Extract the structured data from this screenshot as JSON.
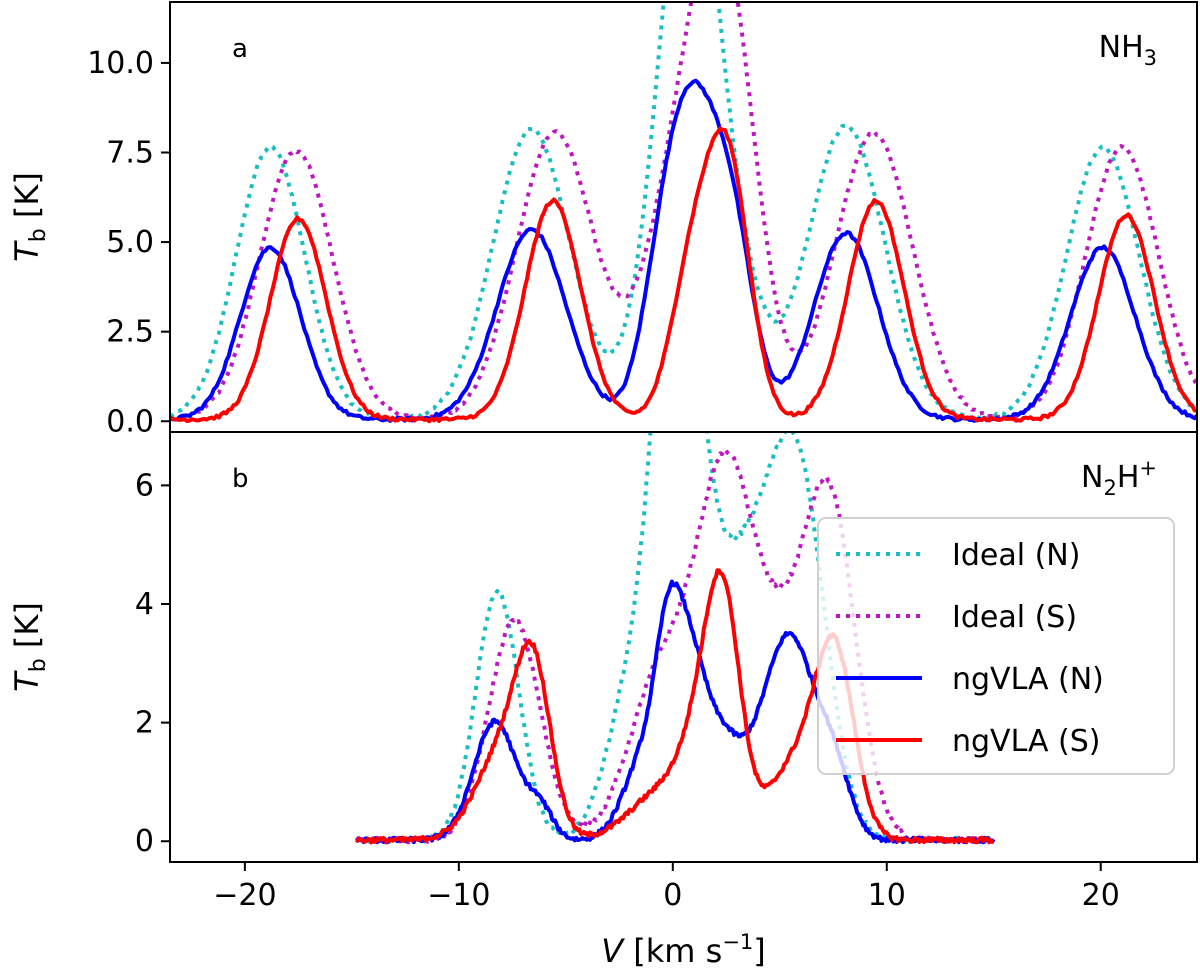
{
  "chart_data": {
    "type": "line",
    "xlim": [
      -23.5,
      24.5
    ],
    "xticks": [
      -20,
      -10,
      0,
      10,
      20
    ],
    "xtick_labels": [
      "−20",
      "−10",
      "0",
      "10",
      "20"
    ],
    "xlabel": {
      "main": "V",
      "unit_pre": " [km s",
      "unit_exp": "−1",
      "unit_post": "]"
    },
    "legend": {
      "position": "right",
      "entries": [
        {
          "label": "Ideal (N)",
          "color": "#17bfc0",
          "style": "dotted"
        },
        {
          "label": "Ideal (S)",
          "color": "#bf17bf",
          "style": "dotted"
        },
        {
          "label": "ngVLA (N)",
          "color": "#0000ff",
          "style": "solid"
        },
        {
          "label": "ngVLA (S)",
          "color": "#ff0000",
          "style": "solid"
        }
      ]
    },
    "panels": [
      {
        "tag": "a",
        "species": {
          "base": "NH",
          "sub": "3",
          "rest": "",
          "sup": ""
        },
        "ylabel": {
          "main": "T",
          "sub": "b",
          "unit": " [K]"
        },
        "ylim": [
          -0.3,
          11.7
        ],
        "yticks": [
          0,
          2.5,
          5,
          7.5,
          10
        ],
        "ytick_labels": [
          "0.0",
          "2.5",
          "5.0",
          "7.5",
          "10.0"
        ],
        "xrange": [
          -23.5,
          24.5
        ],
        "baseline": 0.05,
        "series": [
          {
            "key": "ideal_n",
            "color": "#17bfc0",
            "style": "dotted",
            "peaks": [
              [
                -18.8,
                7.6,
                1.6
              ],
              [
                -6.6,
                8.1,
                1.8
              ],
              [
                0.2,
                6.5,
                1.5
              ],
              [
                1.0,
                10.3,
                1.3
              ],
              [
                3.2,
                2.5,
                1.2
              ],
              [
                8.1,
                8.2,
                1.8
              ],
              [
                20.1,
                7.6,
                1.7
              ]
            ]
          },
          {
            "key": "ideal_s",
            "color": "#bf17bf",
            "style": "dotted",
            "peaks": [
              [
                -17.6,
                7.5,
                1.7
              ],
              [
                -5.5,
                8.0,
                1.8
              ],
              [
                0.8,
                7.7,
                1.8
              ],
              [
                2.6,
                8.5,
                1.4
              ],
              [
                9.4,
                8.0,
                1.8
              ],
              [
                21.0,
                7.6,
                1.7
              ]
            ]
          },
          {
            "key": "ngvla_n",
            "color": "#0000ff",
            "style": "solid",
            "peaks": [
              [
                -18.8,
                4.8,
                1.4
              ],
              [
                -6.6,
                5.3,
                1.6
              ],
              [
                -0.5,
                3.6,
                1.0
              ],
              [
                1.0,
                7.3,
                1.1
              ],
              [
                2.8,
                4.8,
                1.0
              ],
              [
                8.1,
                5.2,
                1.5
              ],
              [
                20.1,
                4.8,
                1.5
              ]
            ]
          },
          {
            "key": "ngvla_s",
            "color": "#ff0000",
            "style": "solid",
            "peaks": [
              [
                -17.5,
                5.6,
                1.3
              ],
              [
                -5.6,
                6.1,
                1.3
              ],
              [
                0.9,
                4.0,
                1.0
              ],
              [
                2.6,
                6.9,
                1.0
              ],
              [
                9.5,
                6.1,
                1.3
              ],
              [
                21.2,
                5.7,
                1.3
              ]
            ]
          }
        ]
      },
      {
        "tag": "b",
        "species": {
          "base": "N",
          "sub": "2",
          "rest": "H",
          "sup": "+"
        },
        "ylabel": {
          "main": "T",
          "sub": "b",
          "unit": " [K]"
        },
        "ylim": [
          -0.35,
          6.9
        ],
        "yticks": [
          0,
          2,
          4,
          6
        ],
        "ytick_labels": [
          "0",
          "2",
          "4",
          "6"
        ],
        "xrange": [
          -14.8,
          15.0
        ],
        "baseline": 0.02,
        "series": [
          {
            "key": "ideal_n",
            "color": "#17bfc0",
            "style": "dotted",
            "peaks": [
              [
                -8.2,
                4.2,
                1.0
              ],
              [
                -1.5,
                3.2,
                1.3
              ],
              [
                -0.2,
                5.8,
                0.8
              ],
              [
                0.9,
                5.8,
                0.9
              ],
              [
                2.6,
                3.0,
                1.0
              ],
              [
                5.8,
                6.3,
                1.3
              ],
              [
                4.0,
                2.2,
                1.0
              ]
            ]
          },
          {
            "key": "ideal_s",
            "color": "#bf17bf",
            "style": "dotted",
            "peaks": [
              [
                -7.4,
                3.7,
                1.2
              ],
              [
                -0.5,
                2.8,
                1.5
              ],
              [
                2.4,
                5.5,
                1.3
              ],
              [
                5.0,
                2.8,
                1.5
              ],
              [
                7.4,
                5.2,
                1.2
              ]
            ]
          },
          {
            "key": "ngvla_n",
            "color": "#0000ff",
            "style": "solid",
            "peaks": [
              [
                -8.3,
                2.0,
                1.0
              ],
              [
                -6.2,
                0.5,
                0.6
              ],
              [
                -1.2,
                1.5,
                1.0
              ],
              [
                -0.2,
                2.4,
                0.6
              ],
              [
                0.8,
                2.4,
                0.7
              ],
              [
                2.2,
                1.6,
                0.9
              ],
              [
                5.7,
                2.8,
                1.0
              ],
              [
                4.3,
                1.4,
                1.0
              ],
              [
                7.5,
                1.2,
                0.8
              ]
            ]
          },
          {
            "key": "ngvla_s",
            "color": "#ff0000",
            "style": "solid",
            "peaks": [
              [
                -7.8,
                1.6,
                1.3
              ],
              [
                -6.5,
                2.3,
                0.8
              ],
              [
                -0.5,
                0.8,
                1.5
              ],
              [
                1.5,
                1.6,
                1.0
              ],
              [
                2.4,
                3.2,
                0.8
              ],
              [
                5.8,
                1.3,
                1.3
              ],
              [
                7.6,
                2.9,
                0.9
              ]
            ]
          }
        ]
      }
    ]
  }
}
